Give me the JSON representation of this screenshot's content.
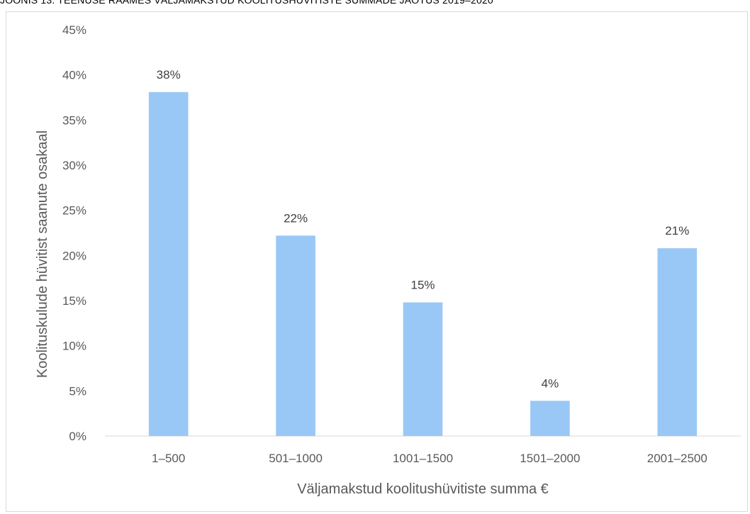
{
  "figure": {
    "title": "JOONIS 13. TEENUSE RAAMES VÄLJAMAKSTUD KOOLITUSHÜVITISTE SUMMADE JAOTUS 2019–2020"
  },
  "chart_data": {
    "type": "bar",
    "categories": [
      "1–500",
      "501–1000",
      "1001–1500",
      "1501–2000",
      "2001–2500"
    ],
    "values": [
      38.1,
      22.2,
      14.8,
      3.9,
      20.8
    ],
    "data_labels": [
      "38%",
      "22%",
      "15%",
      "4%",
      "21%"
    ],
    "ylim": [
      0,
      45
    ],
    "ytick_values": [
      0,
      5,
      10,
      15,
      20,
      25,
      30,
      35,
      40,
      45
    ],
    "ytick_labels": [
      "0%",
      "5%",
      "10%",
      "15%",
      "20%",
      "25%",
      "30%",
      "35%",
      "40%",
      "45%"
    ],
    "xlabel": "Väljamakstud koolitushüvitiste summa €",
    "ylabel": "Koolituskulude hüvitist saanute osakaal",
    "grid": false,
    "legend": false,
    "colors": {
      "bar": "#99c8f6",
      "axis": "#d9d9d9",
      "tick_text": "#595959",
      "label_text": "#404040"
    }
  }
}
